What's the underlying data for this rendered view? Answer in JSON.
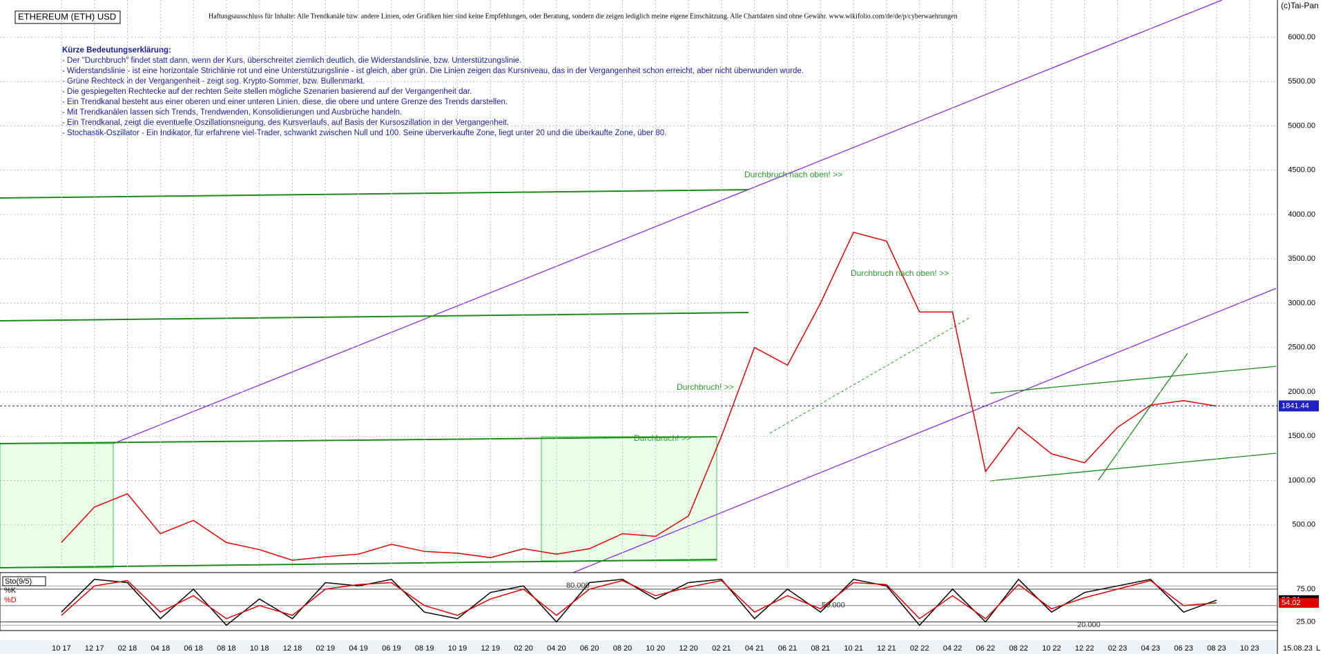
{
  "header": {
    "title": "ETHEREUM (ETH) USD",
    "disclaimer": "Haftungsausschluss für Inhalte: Alle Trendkanäle bzw. andere Linien, oder Grafiken hier sind keine Empfehlungen, oder Beratung, sondern die zeigen lediglich meine eigene Einschätzung. Alle Chartdaten sind ohne Gewähr. www.wikifolio.com/de/de/p/cyberwaehrungen",
    "copyright": "(c)Tai-Pan",
    "legend_heading": "Kürze Bedeutungserklärung:",
    "notes": [
      "- Der \"Durchbruch\" findet statt dann, wenn der Kurs, überschreitet ziemlich deutlich, die Widerstandslinie, bzw. Unterstützungslinie.",
      "- Widerstandslinie - ist eine horizontale Strichlinie rot und eine Unterstützungslinie - ist gleich, aber grün. Die Linien zeigen das Kursniveau, das in der Vergangenheit schon erreicht, aber nicht überwunden wurde.",
      "- Grüne Rechteck in der Vergangenheit - zeigt sog. Krypto-Sommer, bzw. Bullenmarkt.",
      "- Die gespiegelten Rechtecke auf der rechten Seite stellen mögliche Szenarien basierend auf der Vergangenheit dar.",
      "- Ein Trendkanal besteht aus einer oberen und einer unteren Linien, diese, die obere und untere Grenze des Trends darstellen.",
      "- Mit Trendkanälen lassen sich Trends, Trendwenden, Konsolidierungen und Ausbrüche handeln.",
      "- Ein Trendkanal, zeigt die eventuelle Oszillationsneigung, des Kursverlaufs, auf Basis der Kursoszillation in der Vergangenheit.",
      "- Stochastik-Oszillator - Ein Indikator, für erfahrene viel-Trader, schwankt zwischen Null und 100. Seine überverkaufte Zone, liegt unter 20 und die überkaufte Zone, über 80."
    ],
    "date_label": "15.08.23",
    "footer_flag": "L"
  },
  "chart_data": [
    {
      "type": "line",
      "categories": [
        "10 17",
        "12 17",
        "02 18",
        "04 18",
        "06 18",
        "08 18",
        "10 18",
        "12 18",
        "02 19",
        "04 19",
        "06 19",
        "08 19",
        "10 19",
        "12 19",
        "02 20",
        "04 20",
        "06 20",
        "08 20",
        "10 20",
        "12 20",
        "02 21",
        "04 21",
        "06 21",
        "08 21",
        "10 21",
        "12 21",
        "02 22",
        "04 22",
        "06 22",
        "08 22",
        "10 22",
        "12 22",
        "02 23",
        "04 23",
        "06 23",
        "08 23",
        "10 23"
      ],
      "series": [
        {
          "name": "ETH",
          "color": "#e00000",
          "values": [
            300,
            700,
            850,
            400,
            550,
            300,
            220,
            100,
            140,
            170,
            280,
            200,
            180,
            130,
            230,
            170,
            230,
            400,
            370,
            600,
            1500,
            2500,
            2300,
            3000,
            3800,
            3700,
            2900,
            2900,
            1100,
            1600,
            1300,
            1200,
            1600,
            1850,
            1900,
            1840,
            null
          ]
        }
      ],
      "ylim": [
        0,
        6420
      ],
      "yticks": [
        {
          "value": 500,
          "label": "500.00"
        },
        {
          "value": 1000,
          "label": "1000.00"
        },
        {
          "value": 1500,
          "label": "1500.00"
        },
        {
          "value": 2000,
          "label": "2000.00"
        },
        {
          "value": 2500,
          "label": "2500.00"
        },
        {
          "value": 3000,
          "label": "3000.00"
        },
        {
          "value": 3500,
          "label": "3500.00"
        },
        {
          "value": 4000,
          "label": "4000.00"
        },
        {
          "value": 4500,
          "label": "4500.00"
        },
        {
          "value": 5000,
          "label": "5000.00"
        },
        {
          "value": 5500,
          "label": "5500.00"
        },
        {
          "value": 6000,
          "label": "6000.00"
        }
      ],
      "grid": true,
      "last_price": 1841.44,
      "annotations": [
        "Durchbruch nach oben! >>",
        "Durchbruch nach oben! >>",
        "Durchbruch! >>",
        "Durchbruch! >>"
      ]
    },
    {
      "type": "line",
      "title": "Sto(9/5)",
      "series": [
        {
          "name": "%K",
          "color": "#000000",
          "values": [
            40,
            90,
            85,
            30,
            75,
            20,
            60,
            30,
            85,
            80,
            90,
            40,
            30,
            70,
            80,
            25,
            85,
            90,
            60,
            85,
            90,
            30,
            75,
            40,
            90,
            80,
            20,
            75,
            25,
            90,
            40,
            70,
            80,
            90,
            40,
            58.31,
            null
          ]
        },
        {
          "name": "%D",
          "color": "#e00000",
          "values": [
            35,
            80,
            88,
            40,
            65,
            30,
            50,
            35,
            75,
            82,
            85,
            50,
            35,
            60,
            75,
            35,
            75,
            88,
            65,
            78,
            88,
            40,
            65,
            45,
            85,
            82,
            30,
            65,
            30,
            82,
            45,
            62,
            75,
            88,
            50,
            54.02,
            null
          ]
        }
      ],
      "ylim": [
        15,
        95
      ],
      "yticks": [
        {
          "value": 25,
          "label": "25.00"
        },
        {
          "value": 50,
          "label": "50.00"
        },
        {
          "value": 75,
          "label": "75.00"
        }
      ],
      "levels": [
        {
          "value": 80,
          "label": "80.000"
        },
        {
          "value": 50,
          "label": "50.000"
        },
        {
          "value": 20,
          "label": "20.000"
        }
      ]
    }
  ]
}
